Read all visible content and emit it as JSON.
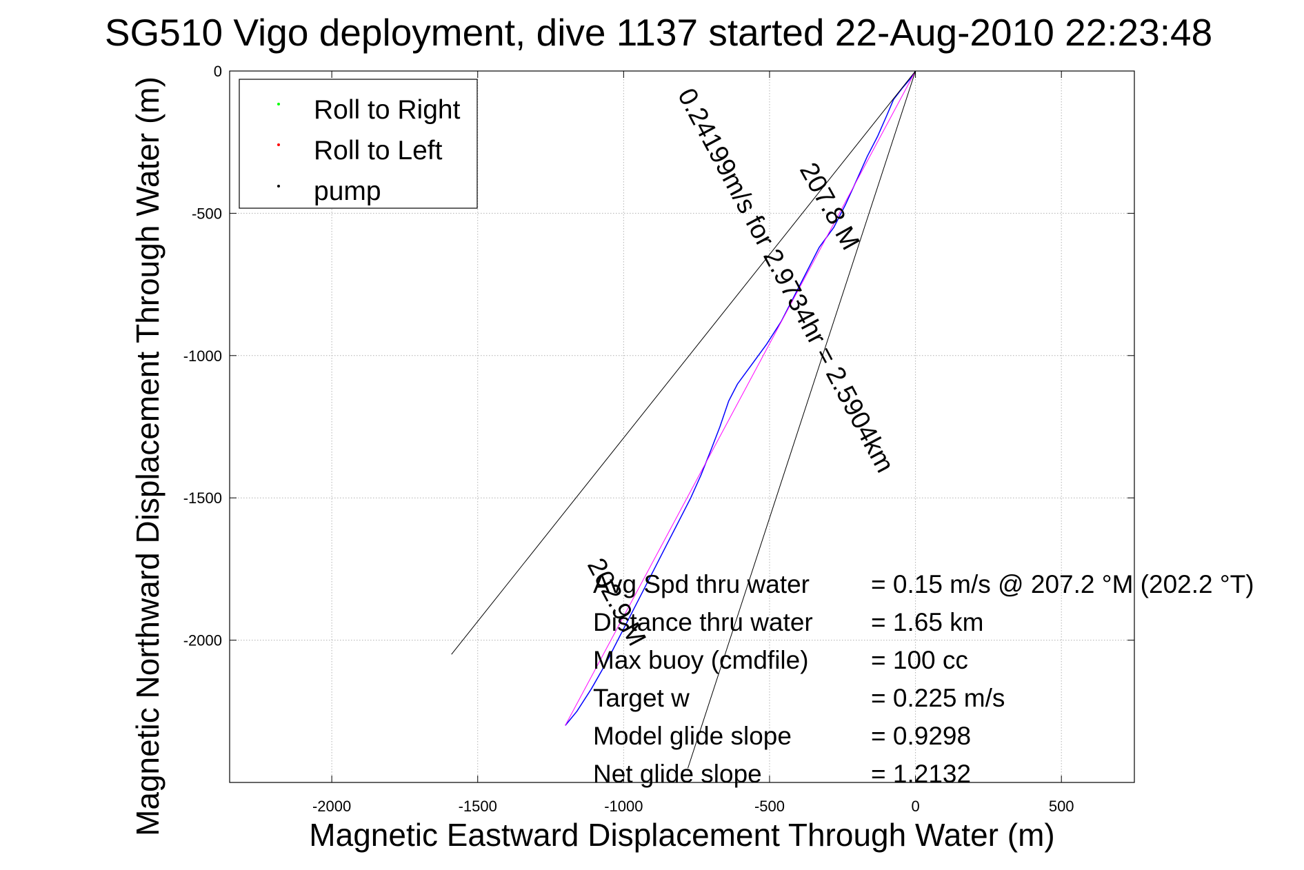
{
  "chart_data": {
    "type": "line",
    "title": "SG510 Vigo deployment, dive 1137 started 22-Aug-2010 22:23:48",
    "xlabel": "Magnetic Eastward Displacement Through Water (m)",
    "ylabel": "Magnetic Northward Displacement Through Water (m)",
    "xlim": [
      -2350,
      750
    ],
    "ylim": [
      -2500,
      0
    ],
    "x_ticks": [
      -2000,
      -1500,
      -1000,
      -500,
      0,
      500
    ],
    "y_ticks": [
      0,
      -500,
      -1000,
      -1500,
      -2000
    ],
    "grid": true,
    "legend_position": "top-left",
    "legend": [
      {
        "label": "Roll to Right",
        "color": "#00ff00"
      },
      {
        "label": "Roll to Left",
        "color": "#ff0000"
      },
      {
        "label": "pump",
        "color": "#000000"
      }
    ],
    "series": [
      {
        "kind": "track",
        "color": "#0000ff",
        "points": [
          [
            0,
            0
          ],
          [
            -20,
            -30
          ],
          [
            -45,
            -60
          ],
          [
            -75,
            -100
          ],
          [
            -100,
            -160
          ],
          [
            -130,
            -230
          ],
          [
            -165,
            -300
          ],
          [
            -200,
            -380
          ],
          [
            -240,
            -470
          ],
          [
            -280,
            -550
          ],
          [
            -330,
            -620
          ],
          [
            -370,
            -700
          ],
          [
            -410,
            -780
          ],
          [
            -460,
            -880
          ],
          [
            -510,
            -960
          ],
          [
            -560,
            -1030
          ],
          [
            -610,
            -1100
          ],
          [
            -640,
            -1160
          ],
          [
            -670,
            -1250
          ],
          [
            -700,
            -1330
          ],
          [
            -735,
            -1420
          ],
          [
            -770,
            -1500
          ],
          [
            -810,
            -1580
          ],
          [
            -850,
            -1660
          ],
          [
            -890,
            -1740
          ],
          [
            -930,
            -1820
          ],
          [
            -970,
            -1900
          ],
          [
            -1010,
            -1980
          ],
          [
            -1060,
            -2080
          ],
          [
            -1110,
            -2170
          ],
          [
            -1160,
            -2250
          ],
          [
            -1200,
            -2300
          ]
        ]
      },
      {
        "kind": "heading",
        "color": "#ff00ff",
        "points": [
          [
            0,
            0
          ],
          [
            -1200,
            -2300
          ]
        ]
      },
      {
        "kind": "bound",
        "color": "#000000",
        "points": [
          [
            0,
            0
          ],
          [
            -1590,
            -2050
          ]
        ]
      },
      {
        "kind": "bound",
        "color": "#000000",
        "points": [
          [
            0,
            0
          ],
          [
            -780,
            -2450
          ]
        ]
      }
    ],
    "annotations": [
      {
        "text": "207.8 M",
        "x": -320,
        "y": -490,
        "angle": 61
      },
      {
        "text": "0.24199m/s for 2.9734hr = 2.5904km",
        "x": -470,
        "y": -750,
        "angle": 62
      },
      {
        "text": "202.9 M",
        "x": -1050,
        "y": -1880,
        "angle": 62
      }
    ],
    "stats": [
      {
        "label": "Avg Spd thru water",
        "value": "=  0.15 m/s @ 207.2 °M (202.2 °T)"
      },
      {
        "label": "Distance thru water",
        "value": "=  1.65 km"
      },
      {
        "label": "Max buoy (cmdfile)",
        "value": "= 100 cc"
      },
      {
        "label": "Target w",
        "value": "= 0.225 m/s"
      },
      {
        "label": "Model glide slope",
        "value": "= 0.9298"
      },
      {
        "label": "Net glide slope",
        "value": "= 1.2132"
      }
    ]
  }
}
